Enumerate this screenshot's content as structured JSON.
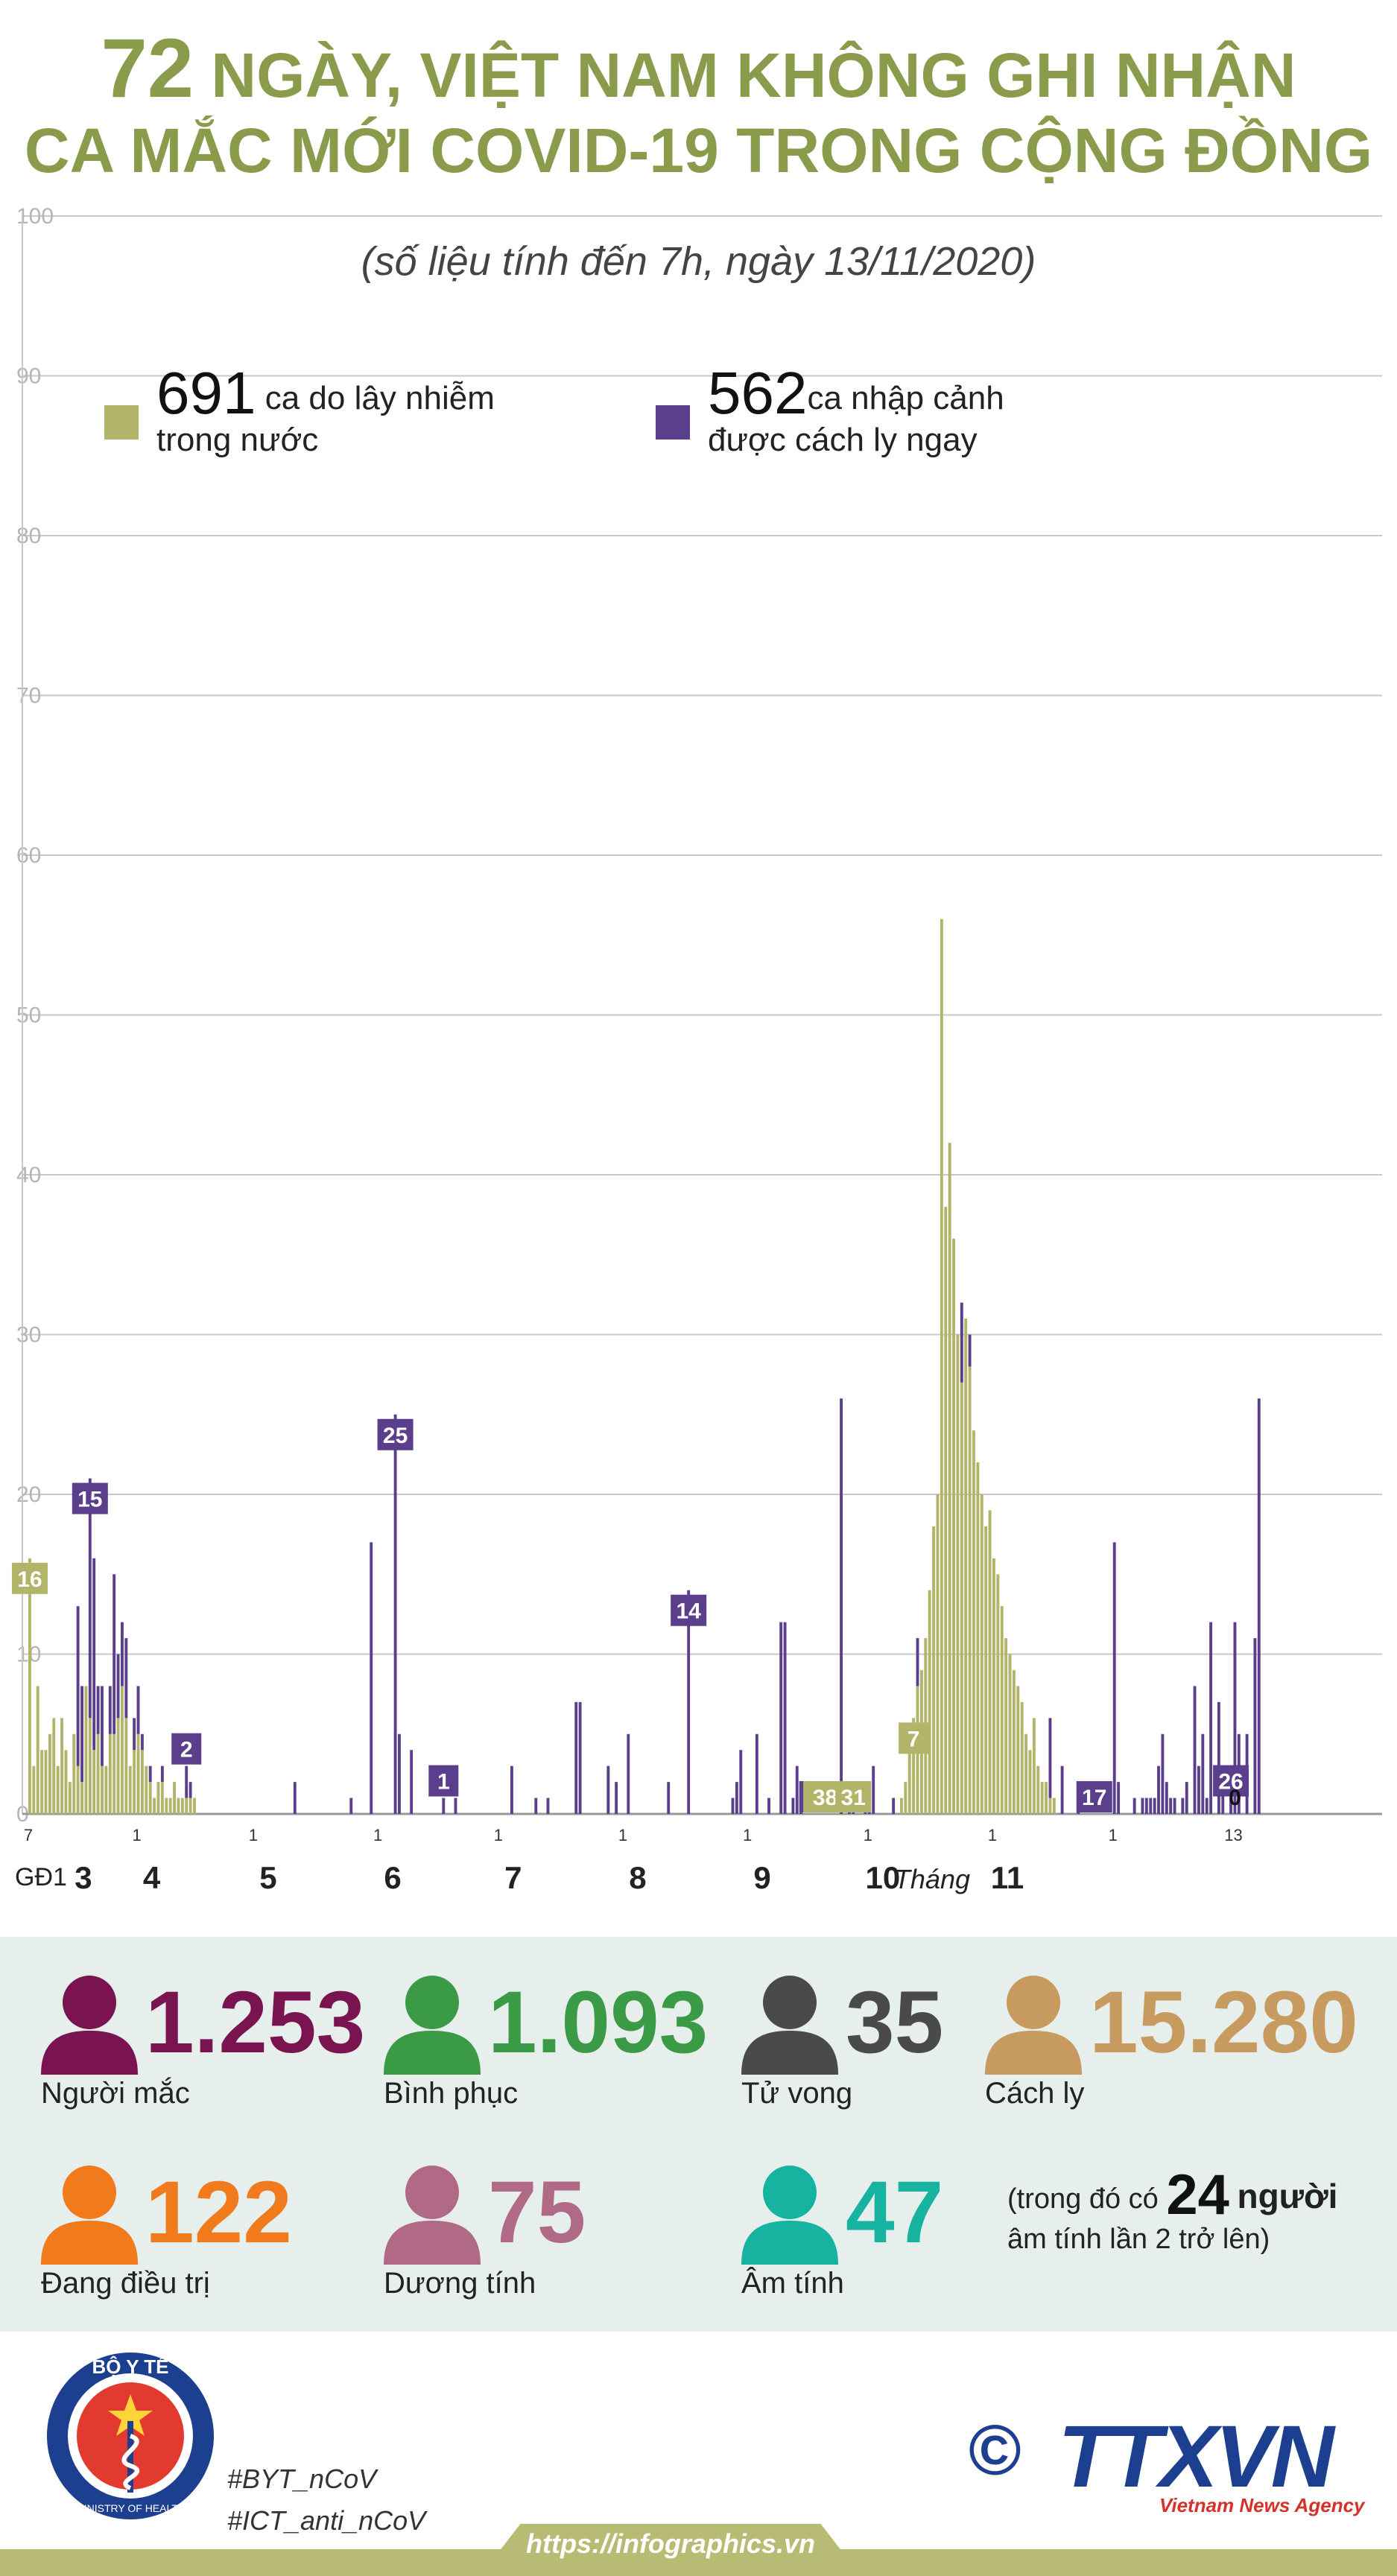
{
  "header": {
    "title_number": "72",
    "title_line1": "NGÀY, VIỆT NAM KHÔNG GHI NHẬN",
    "title_line2": "CA MẮC MỚI COVID-19 TRONG CỘNG ĐỒNG",
    "subtitle": "(số liệu tính đến 7h, ngày 13/11/2020)"
  },
  "legend": {
    "domestic_count": "691",
    "domestic_label1": "ca do lây nhiễm",
    "domestic_label2": "trong nước",
    "imported_count": "562",
    "imported_label1": "ca nhập cảnh",
    "imported_label2": "được cách ly ngay"
  },
  "colors": {
    "domestic": "#b2b46a",
    "imported": "#5b3f8c",
    "title": "#8a9b4c",
    "grid": "#c8c8c8"
  },
  "chart_data": {
    "type": "bar",
    "stacked": true,
    "ylim": [
      0,
      100
    ],
    "yticks": [
      0,
      10,
      20,
      30,
      40,
      50,
      60,
      70,
      80,
      90,
      100
    ],
    "grid": true,
    "series": [
      {
        "name": "ca do lây nhiễm trong nước",
        "color": "#b2b46a",
        "values": [
          16,
          3,
          8,
          4,
          4,
          5,
          6,
          3,
          6,
          4,
          2,
          5,
          3,
          2,
          8,
          6,
          4,
          5,
          3,
          3,
          5,
          5,
          6,
          8,
          6,
          3,
          4,
          5,
          4,
          3,
          2,
          1,
          2,
          2,
          1,
          1,
          2,
          1,
          1,
          1,
          1,
          1,
          0,
          0,
          0,
          0,
          0,
          0,
          0,
          0,
          0,
          0,
          0,
          0,
          0,
          0,
          0,
          0,
          0,
          0,
          0,
          0,
          0,
          0,
          0,
          0,
          0,
          0,
          0,
          0,
          0,
          0,
          0,
          0,
          0,
          0,
          0,
          0,
          0,
          0,
          0,
          0,
          0,
          0,
          0,
          0,
          0,
          0,
          0,
          0,
          0,
          0,
          0,
          0,
          0,
          0,
          0,
          0,
          0,
          0,
          0,
          0,
          0,
          0,
          0,
          0,
          0,
          0,
          0,
          0,
          0,
          0,
          0,
          0,
          0,
          0,
          0,
          0,
          0,
          0,
          0,
          0,
          0,
          0,
          0,
          0,
          0,
          0,
          0,
          0,
          0,
          0,
          0,
          0,
          0,
          0,
          0,
          0,
          0,
          0,
          0,
          0,
          0,
          0,
          0,
          0,
          0,
          0,
          0,
          0,
          0,
          0,
          0,
          0,
          0,
          0,
          0,
          0,
          0,
          0,
          0,
          0,
          0,
          0,
          0,
          0,
          0,
          0,
          0,
          0,
          0,
          0,
          0,
          0,
          0,
          0,
          0,
          0,
          0,
          0,
          0,
          0,
          0,
          0,
          0,
          0,
          0,
          0,
          0,
          0,
          0,
          0,
          0,
          0,
          0,
          0,
          0,
          0,
          0,
          0,
          0,
          0,
          0,
          0,
          0,
          0,
          0,
          0,
          0,
          0,
          0,
          0,
          0,
          0,
          0,
          0,
          0,
          1,
          2,
          4,
          6,
          8,
          9,
          11,
          14,
          18,
          20,
          56,
          38,
          42,
          36,
          30,
          27,
          31,
          28,
          24,
          22,
          20,
          18,
          19,
          16,
          15,
          13,
          11,
          10,
          9,
          8,
          7,
          5,
          4,
          6,
          3,
          2,
          2,
          1,
          1,
          0,
          0,
          0,
          0,
          0,
          0,
          0,
          0,
          0,
          0,
          0,
          0,
          0,
          0,
          0,
          0,
          0,
          0,
          0,
          0,
          0,
          0,
          0,
          0,
          0,
          0,
          0,
          0,
          0,
          0,
          0,
          0,
          0,
          0,
          0,
          0,
          0,
          0,
          0,
          0,
          0,
          0,
          0,
          0,
          0,
          0,
          0,
          0,
          0,
          0,
          0,
          0,
          0,
          0,
          0,
          0,
          0,
          0,
          0,
          0,
          0,
          0,
          0,
          0,
          0,
          0,
          0,
          0,
          0,
          0,
          0,
          0,
          0,
          0,
          0,
          0,
          0,
          0,
          0,
          0,
          0
        ]
      },
      {
        "name": "ca nhập cảnh được cách ly ngay",
        "color": "#5b3f8c",
        "values": [
          0,
          0,
          0,
          0,
          0,
          0,
          0,
          0,
          0,
          0,
          0,
          0,
          10,
          6,
          0,
          15,
          12,
          3,
          5,
          0,
          3,
          10,
          4,
          4,
          5,
          0,
          2,
          3,
          1,
          0,
          1,
          0,
          0,
          1,
          0,
          0,
          0,
          0,
          0,
          2,
          1,
          0,
          0,
          0,
          0,
          0,
          0,
          0,
          0,
          0,
          0,
          0,
          0,
          0,
          0,
          0,
          0,
          0,
          0,
          0,
          0,
          0,
          0,
          0,
          0,
          0,
          2,
          0,
          0,
          0,
          0,
          0,
          0,
          0,
          0,
          0,
          0,
          0,
          0,
          0,
          1,
          0,
          0,
          0,
          0,
          17,
          0,
          0,
          0,
          0,
          0,
          25,
          5,
          0,
          0,
          4,
          0,
          0,
          0,
          0,
          0,
          0,
          0,
          1,
          0,
          0,
          1,
          0,
          0,
          0,
          0,
          0,
          0,
          0,
          0,
          0,
          0,
          0,
          0,
          0,
          3,
          0,
          0,
          0,
          0,
          0,
          1,
          0,
          0,
          1,
          0,
          0,
          0,
          0,
          0,
          0,
          7,
          7,
          0,
          0,
          0,
          0,
          0,
          0,
          3,
          0,
          2,
          0,
          0,
          5,
          0,
          0,
          0,
          0,
          0,
          0,
          0,
          0,
          0,
          2,
          0,
          0,
          0,
          0,
          14,
          0,
          0,
          0,
          0,
          0,
          0,
          0,
          0,
          0,
          0,
          1,
          2,
          4,
          0,
          0,
          0,
          5,
          0,
          0,
          1,
          0,
          0,
          12,
          12,
          0,
          1,
          3,
          1,
          0,
          0,
          0,
          0,
          0,
          0,
          0,
          0,
          0,
          26,
          0,
          2,
          2,
          0,
          0,
          1,
          2,
          3,
          0,
          0,
          0,
          0,
          1,
          0,
          0,
          0,
          0,
          0,
          3,
          0,
          0,
          0,
          0,
          0,
          0,
          0,
          0,
          0,
          0,
          5,
          0,
          2,
          0,
          0,
          0,
          0,
          0,
          0,
          0,
          0,
          0,
          0,
          0,
          0,
          0,
          0,
          0,
          0,
          0,
          0,
          0,
          5,
          0,
          0,
          3,
          0,
          0,
          0,
          2,
          0,
          0,
          0,
          0,
          0,
          0,
          0,
          0,
          17,
          2,
          0,
          0,
          0,
          1,
          0,
          1,
          1,
          1,
          1,
          3,
          5,
          2,
          1,
          1,
          0,
          1,
          2,
          0,
          8,
          3,
          5,
          1,
          12,
          0,
          7,
          3,
          0,
          1,
          12,
          5,
          0,
          5,
          0,
          11,
          26,
          0
        ]
      }
    ],
    "bar_labels": [
      {
        "index": 0,
        "text": "16",
        "series": 0
      },
      {
        "index": 15,
        "text": "15",
        "series": 1
      },
      {
        "index": 39,
        "text": "2",
        "series": 1
      },
      {
        "index": 91,
        "text": "25",
        "series": 1
      },
      {
        "index": 103,
        "text": "1",
        "series": 1
      },
      {
        "index": 164,
        "text": "14",
        "series": 1
      },
      {
        "index": 196,
        "text": "26",
        "series": 1
      },
      {
        "index": 197,
        "text": "56",
        "series": 0
      },
      {
        "index": 199,
        "text": "42",
        "series": 0
      },
      {
        "index": 198,
        "text": "38",
        "series": 0
      },
      {
        "index": 205,
        "text": "31",
        "series": 0
      },
      {
        "index": 220,
        "text": "7",
        "series": 0
      },
      {
        "index": 265,
        "text": "17",
        "series": 1
      },
      {
        "index": 299,
        "text": "26",
        "series": 1
      },
      {
        "index": 300,
        "text": "0",
        "series": 1
      }
    ],
    "day_ticks": [
      {
        "index": 0,
        "text": "7"
      },
      {
        "index": 27,
        "text": "1"
      },
      {
        "index": 56,
        "text": "1"
      },
      {
        "index": 87,
        "text": "1"
      },
      {
        "index": 117,
        "text": "1"
      },
      {
        "index": 148,
        "text": "1"
      },
      {
        "index": 179,
        "text": "1"
      },
      {
        "index": 209,
        "text": "1"
      },
      {
        "index": 240,
        "text": "1"
      },
      {
        "index": 270,
        "text": "1"
      },
      {
        "index": 300,
        "text": "13"
      }
    ],
    "month_labels": [
      {
        "index": 10,
        "text": "3"
      },
      {
        "index": 27,
        "text": "4"
      },
      {
        "index": 56,
        "text": "5"
      },
      {
        "index": 87,
        "text": "6"
      },
      {
        "index": 117,
        "text": "7"
      },
      {
        "index": 148,
        "text": "8"
      },
      {
        "index": 179,
        "text": "9"
      },
      {
        "index": 209,
        "text": "10"
      },
      {
        "index": 240,
        "text": "11"
      }
    ],
    "phase_label": "GĐ1",
    "month_prefix": "Tháng"
  },
  "stats": [
    {
      "value": "1.253",
      "label": "Người mắc",
      "color": "#7a1450"
    },
    {
      "value": "1.093",
      "label": "Bình phục",
      "color": "#3a9a46"
    },
    {
      "value": "35",
      "label": "Tử vong",
      "color": "#4a4a4a"
    },
    {
      "value": "15.280",
      "label": "Cách ly",
      "color": "#c79a60"
    },
    {
      "value": "122",
      "label": "Đang điều trị",
      "color": "#f07a1c"
    },
    {
      "value": "75",
      "label": "Dương tính",
      "color": "#b06a86"
    },
    {
      "value": "47",
      "label": "Âm tính",
      "color": "#16b3a0"
    }
  ],
  "note": {
    "pre": "(trong đó có",
    "number": "24",
    "word": "người",
    "line2": "âm tính lần 2 trở lên)"
  },
  "footer": {
    "hashtag1": "#BYT_nCoV",
    "hashtag2": "#ICT_anti_nCoV",
    "url": "https://infographics.vn",
    "ministry_top": "BỘ Y TẾ",
    "ministry_bottom": "MINISTRY OF HEALTH",
    "agency_logo": "TTXVN",
    "agency_name": "Vietnam News Agency",
    "copyright": "©"
  }
}
